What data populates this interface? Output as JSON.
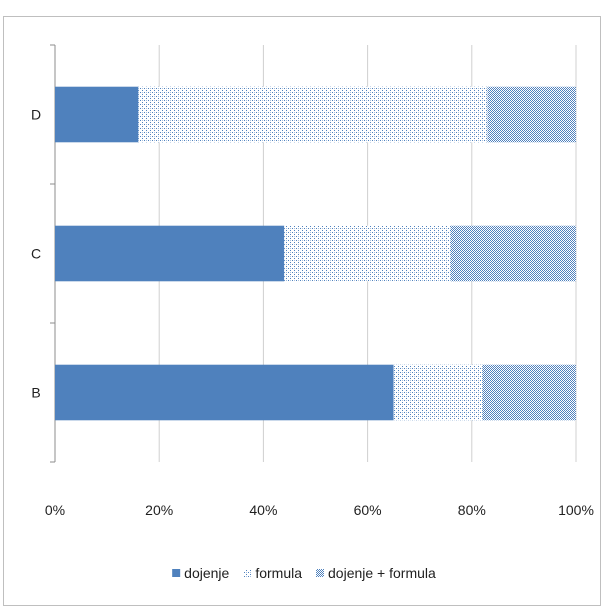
{
  "chart_data": {
    "type": "bar",
    "orientation": "horizontal",
    "stacked": "percent",
    "categories": [
      "D",
      "C",
      "B"
    ],
    "series": [
      {
        "name": "dojenje",
        "values": [
          16,
          44,
          65
        ],
        "pattern": "solid",
        "color": "#4f81bd"
      },
      {
        "name": "formula",
        "values": [
          67,
          32,
          17
        ],
        "pattern": "light-dots",
        "color": "#4f81bd"
      },
      {
        "name": "dojenje + formula",
        "values": [
          17,
          24,
          18
        ],
        "pattern": "dense-dots",
        "color": "#4f81bd"
      }
    ],
    "xlim": [
      0,
      100
    ],
    "x_ticks": [
      "0%",
      "20%",
      "40%",
      "60%",
      "80%",
      "100%"
    ],
    "x_tick_values": [
      0,
      20,
      40,
      60,
      80,
      100
    ],
    "grid": "vertical",
    "legend_position": "bottom",
    "title": "",
    "xlabel": "",
    "ylabel": ""
  }
}
